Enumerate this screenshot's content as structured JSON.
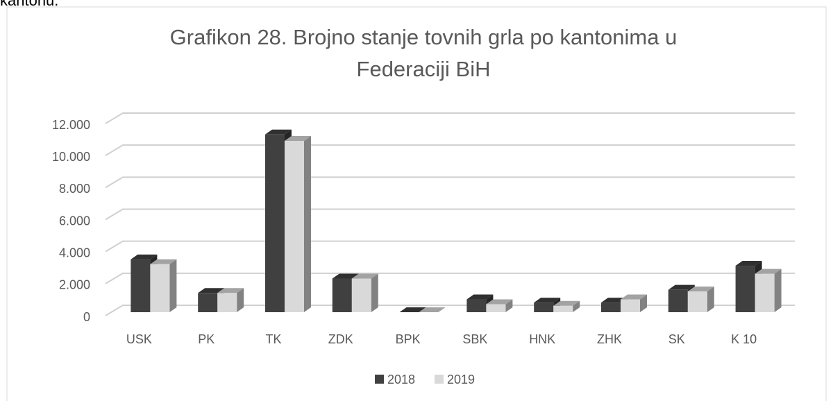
{
  "page_heading_fragment": "kantonu.",
  "chart_data": {
    "type": "bar",
    "title": [
      "Grafikon 28. Brojno stanje tovnih grla po kantonima u",
      "Federaciji BiH"
    ],
    "categories": [
      "USK",
      "PK",
      "TK",
      "ZDK",
      "BPK",
      "SBK",
      "HNK",
      "ZHK",
      "SK",
      "K 10"
    ],
    "series": [
      {
        "name": "2018",
        "color": "#404040",
        "values": [
          3300,
          1200,
          11100,
          2100,
          0,
          800,
          600,
          600,
          1400,
          2900
        ]
      },
      {
        "name": "2019",
        "color": "#d9d9d9",
        "values": [
          3000,
          1200,
          10700,
          2100,
          0,
          500,
          400,
          800,
          1300,
          2400
        ]
      }
    ],
    "ylim": [
      0,
      12000
    ],
    "yticks": [
      0,
      {
        "value": 2000,
        "label": "2.000"
      },
      {
        "value": 4000,
        "label": "4.000"
      },
      {
        "value": 6000,
        "label": "6.000"
      },
      {
        "value": 8000,
        "label": "8.000"
      },
      {
        "value": 10000,
        "label": "10.000"
      },
      {
        "value": 12000,
        "label": "12.000"
      }
    ],
    "grid": true,
    "legend": "bottom"
  }
}
